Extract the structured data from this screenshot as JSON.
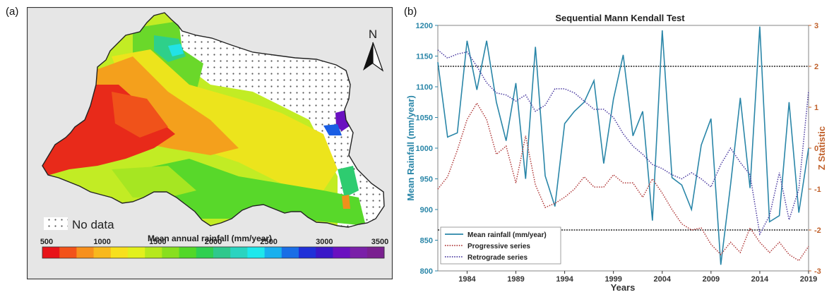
{
  "panel_a": {
    "label": "(a)",
    "north_label": "N",
    "no_data_label": "No data",
    "legend_title": "Mean annual rainfall (mm/year)",
    "legend_ticks": [
      "500",
      "1000",
      "1500",
      "2000",
      "2500",
      "3000",
      "3500"
    ],
    "legend_colors": [
      "#e8141a",
      "#f2521a",
      "#f7901c",
      "#f8b81c",
      "#f7e01c",
      "#e2f01c",
      "#b6e81c",
      "#88df1e",
      "#52d828",
      "#2ed050",
      "#2ec88c",
      "#2ad4c0",
      "#1ee8ec",
      "#1ab0ee",
      "#1a6ee6",
      "#2030d8",
      "#3a18c8",
      "#6a10c0",
      "#7a20a8",
      "#7a2090"
    ],
    "background_color": "#e6e6e6",
    "colors": {
      "red": "#e8141a",
      "orange": "#f08a1c",
      "yellow": "#f2ea1c",
      "green": "#52d828",
      "cyan": "#2ae0e0",
      "blue": "#1a4ee0",
      "purple": "#6a10c0"
    }
  },
  "chart_data": {
    "type": "line",
    "label": "(b)",
    "title": "Sequential Mann Kendall Test",
    "xlabel": "Years",
    "ylabel": "Mean Rainfall (mm/year)",
    "ylabel_right": "Z Statistic",
    "xlim": [
      1981,
      2019
    ],
    "ylim": [
      800,
      1200
    ],
    "ylim_right": [
      -3,
      3
    ],
    "x_ticks": [
      "1984",
      "1989",
      "1994",
      "1999",
      "2004",
      "2009",
      "2014",
      "2019"
    ],
    "y_ticks": [
      "800",
      "850",
      "900",
      "950",
      "1000",
      "1050",
      "1100",
      "1150",
      "1200"
    ],
    "y_ticks_right": [
      "-3",
      "-2",
      "-1",
      "0",
      "1",
      "2",
      "3"
    ],
    "critical_values": [
      2,
      -2
    ],
    "x": [
      1981,
      1982,
      1983,
      1984,
      1985,
      1986,
      1987,
      1988,
      1989,
      1990,
      1991,
      1992,
      1993,
      1994,
      1995,
      1996,
      1997,
      1998,
      1999,
      2000,
      2001,
      2002,
      2003,
      2004,
      2005,
      2006,
      2007,
      2008,
      2009,
      2010,
      2011,
      2012,
      2013,
      2014,
      2015,
      2016,
      2017,
      2018,
      2019
    ],
    "series": [
      {
        "name": "Mean rainfall (mm/year)",
        "axis": "left",
        "color": "#2a86a8",
        "style": "solid",
        "values": [
          1140,
          1018,
          1025,
          1175,
          1095,
          1175,
          1075,
          1012,
          1106,
          950,
          1165,
          955,
          905,
          1040,
          1060,
          1075,
          1110,
          975,
          1080,
          1152,
          1020,
          1060,
          882,
          1192,
          952,
          940,
          900,
          1005,
          1048,
          810,
          940,
          1082,
          935,
          1198,
          880,
          890,
          1075,
          895,
          1000
        ]
      },
      {
        "name": "Progressive series",
        "axis": "right",
        "color": "#b03a3a",
        "style": "dotted",
        "values": [
          -1.0,
          -0.7,
          -0.05,
          0.7,
          1.1,
          0.7,
          -0.15,
          0.05,
          -0.85,
          0.3,
          -0.9,
          -1.45,
          -1.35,
          -1.2,
          -1.0,
          -0.7,
          -0.95,
          -0.95,
          -0.65,
          -0.85,
          -0.85,
          -1.2,
          -0.75,
          -1.1,
          -1.5,
          -1.85,
          -2.0,
          -1.95,
          -2.35,
          -2.6,
          -2.3,
          -2.55,
          -1.95,
          -2.3,
          -2.55,
          -2.3,
          -2.6,
          -2.75,
          -2.4
        ]
      },
      {
        "name": "Retrograde series",
        "axis": "right",
        "color": "#4a3aa0",
        "style": "dotted",
        "values": [
          2.4,
          2.2,
          2.3,
          2.35,
          2.0,
          1.6,
          1.35,
          1.3,
          1.15,
          1.3,
          0.9,
          1.05,
          1.45,
          1.45,
          1.35,
          1.15,
          0.95,
          0.95,
          0.75,
          0.35,
          0.05,
          -0.15,
          -0.4,
          -0.5,
          -0.65,
          -0.75,
          -0.6,
          -0.75,
          -0.95,
          -0.4,
          0.0,
          -0.35,
          -0.65,
          -2.1,
          -1.65,
          -0.6,
          -1.75,
          -1.0,
          1.4
        ]
      }
    ],
    "legend_position": "bottom-left"
  }
}
